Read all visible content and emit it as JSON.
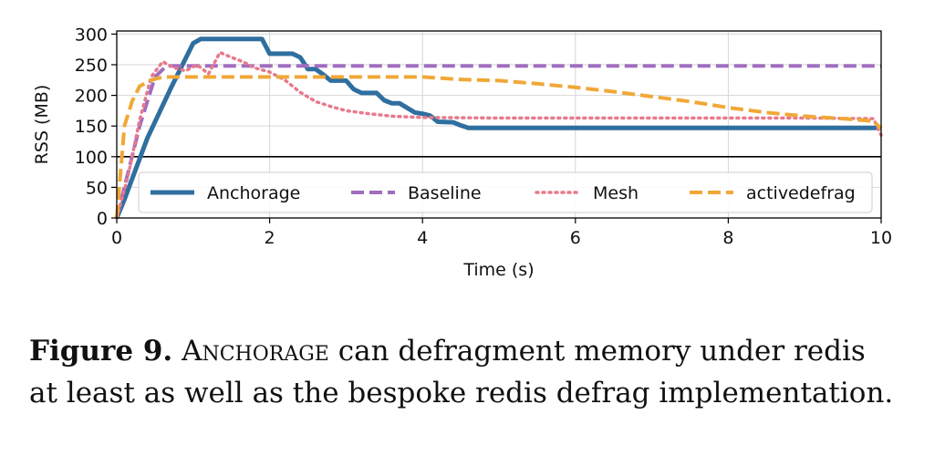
{
  "caption": {
    "label": "Figure 9.",
    "system_name": "Anchorage",
    "text_line1_rest": "can defragment memory under redis",
    "text_line2": "at least as well as the bespoke redis defrag implementation."
  },
  "chart_data": {
    "type": "line",
    "title": "",
    "xlabel": "Time (s)",
    "ylabel": "RSS (MB)",
    "xlim": [
      0,
      10
    ],
    "ylim": [
      0,
      305
    ],
    "xticks": [
      0,
      2,
      4,
      6,
      8,
      10
    ],
    "yticks": [
      0,
      50,
      100,
      150,
      200,
      250,
      300
    ],
    "grid": true,
    "reference_line": {
      "y": 100,
      "color": "#000000"
    },
    "legend": {
      "placement": "bottom",
      "columns": 4
    },
    "series": [
      {
        "name": "Anchorage",
        "color": "#2f6f9f",
        "style": "solid",
        "x": [
          0,
          0.1,
          0.4,
          0.7,
          1.0,
          1.1,
          1.9,
          2.0,
          2.3,
          2.4,
          2.5,
          2.6,
          2.7,
          2.8,
          2.9,
          3.0,
          3.1,
          3.2,
          3.4,
          3.5,
          3.6,
          3.7,
          3.9,
          4.0,
          4.1,
          4.2,
          4.4,
          4.5,
          4.6,
          10.0
        ],
        "y": [
          0,
          30,
          130,
          210,
          285,
          292,
          292,
          268,
          268,
          262,
          243,
          243,
          234,
          224,
          224,
          224,
          210,
          204,
          204,
          192,
          187,
          187,
          172,
          170,
          167,
          157,
          156,
          151,
          147,
          147
        ]
      },
      {
        "name": "Baseline",
        "color": "#a06dbf",
        "style": "dashed",
        "x": [
          0,
          0.1,
          0.3,
          0.5,
          0.65,
          0.8,
          10.0
        ],
        "y": [
          0,
          50,
          150,
          230,
          248,
          248,
          248
        ]
      },
      {
        "name": "Mesh",
        "color": "#e77a8c",
        "style": "dotted",
        "x": [
          0,
          0.15,
          0.3,
          0.45,
          0.6,
          0.75,
          0.9,
          1.05,
          1.2,
          1.35,
          1.5,
          1.65,
          1.8,
          2.0,
          2.2,
          2.4,
          2.6,
          2.8,
          3.0,
          3.3,
          3.6,
          4.0,
          5.0,
          7.0,
          9.0,
          9.9,
          10.0
        ],
        "y": [
          0,
          70,
          160,
          230,
          255,
          245,
          240,
          250,
          235,
          270,
          262,
          255,
          245,
          238,
          225,
          205,
          190,
          182,
          175,
          170,
          166,
          164,
          163,
          163,
          163,
          162,
          135
        ]
      },
      {
        "name": "activedefrag",
        "color": "#f0a837",
        "style": "dashed",
        "x": [
          0,
          0.1,
          0.2,
          0.3,
          0.45,
          0.6,
          0.75,
          4.0,
          4.5,
          5.0,
          5.5,
          6.0,
          6.5,
          7.0,
          7.5,
          8.0,
          8.5,
          9.0,
          9.5,
          9.9,
          10.0
        ],
        "y": [
          0,
          150,
          190,
          215,
          225,
          230,
          230,
          230,
          226,
          224,
          219,
          213,
          206,
          198,
          190,
          180,
          172,
          166,
          162,
          158,
          146
        ]
      }
    ]
  }
}
